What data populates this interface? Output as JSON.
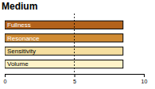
{
  "chart_data": {
    "type": "bar",
    "title": "Medium",
    "orientation": "horizontal",
    "categories": [
      "Fullness",
      "Resonance",
      "Sensitivity",
      "Volume"
    ],
    "values": [
      8.5,
      8.5,
      8.5,
      8.5
    ],
    "colors": [
      "#b3621b",
      "#d08b33",
      "#f6dfa0",
      "#fff3c8"
    ],
    "xlim": [
      0,
      10
    ],
    "xticks": [
      0,
      5,
      10
    ],
    "reference_line": 5
  }
}
